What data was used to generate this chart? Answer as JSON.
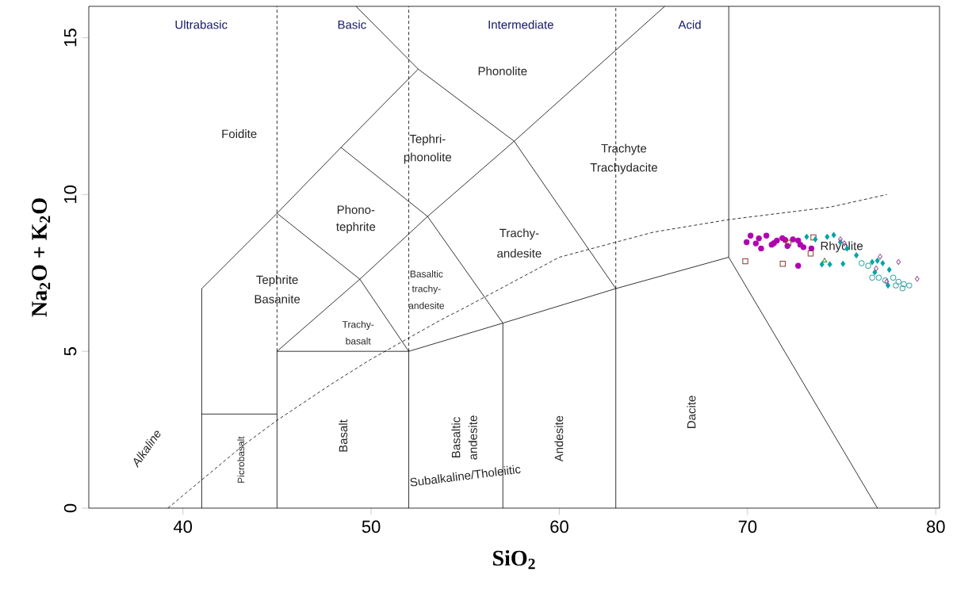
{
  "chart_data": {
    "type": "scatter",
    "xlabel": "SiO$_{2}$",
    "ylabel": "Na$_{2}$O + K$_{2}$O",
    "xlim": [
      35,
      80.2
    ],
    "ylim": [
      0,
      16
    ],
    "xticks": [
      40,
      50,
      60,
      70,
      80
    ],
    "yticks": [
      0,
      5,
      10,
      15
    ],
    "grid": false,
    "series": [
      {
        "marker": "circle",
        "color": "#b000b0",
        "x": [
          70.16,
          69.95,
          71.0,
          71.56,
          72.12,
          72.69,
          72.97,
          73.39,
          72.69,
          70.72,
          71.28,
          71.85,
          72.41,
          70.44,
          70.6,
          71.4,
          72.0,
          72.8
        ],
        "values": [
          8.69,
          8.48,
          8.69,
          8.53,
          8.36,
          8.53,
          8.32,
          8.28,
          7.73,
          8.28,
          8.4,
          8.61,
          8.57,
          8.44,
          8.6,
          8.45,
          8.55,
          8.4
        ]
      },
      {
        "marker": "square",
        "color": "#8b3a3a",
        "x": [
          69.88,
          71.87,
          73.5,
          72.17,
          73.35
        ],
        "values": [
          7.87,
          7.79,
          8.63,
          8.46,
          8.12
        ]
      },
      {
        "marker": "diamond",
        "color": "#00a5a5",
        "x": [
          73.14,
          73.6,
          74.23,
          74.58,
          74.93,
          75.29,
          75.78,
          75.07,
          74.37,
          73.95,
          76.62,
          76.9,
          77.18,
          77.53,
          77.46,
          76.76
        ],
        "values": [
          8.65,
          8.57,
          8.65,
          8.71,
          8.48,
          8.28,
          8.06,
          7.79,
          7.77,
          7.77,
          7.85,
          7.89,
          7.81,
          7.6,
          7.1,
          7.52
        ]
      },
      {
        "marker": "circle",
        "color": "#3aa5a5",
        "x": [
          76.06,
          76.41,
          76.62,
          76.97,
          77.32,
          77.74,
          78.02,
          78.3,
          78.59,
          77.88,
          78.23
        ],
        "values": [
          7.81,
          7.73,
          7.35,
          7.35,
          7.26,
          7.35,
          7.22,
          7.14,
          7.1,
          7.1,
          7.01
        ]
      },
      {
        "marker": "diamond",
        "color": "#9b4f9b",
        "x": [
          74.93,
          75.14,
          77.04,
          78.02,
          79.01,
          76.83,
          77.39
        ],
        "values": [
          8.57,
          8.44,
          8.02,
          7.85,
          7.31,
          7.64,
          7.22
        ]
      },
      {
        "marker": "triangle",
        "color": "#2e8b2e",
        "x": [
          74.09
        ],
        "values": [
          7.89
        ]
      },
      {
        "type": "line",
        "marker": "none",
        "line_style": "solid",
        "color": "#000000",
        "x": [
          41,
          41,
          45,
          48.4,
          52.5,
          49.2
        ],
        "values": [
          0,
          7,
          9.4,
          11.5,
          14,
          16
        ]
      },
      {
        "type": "line",
        "marker": "none",
        "line_style": "solid",
        "color": "#000000",
        "x": [
          52.5,
          57.6,
          63
        ],
        "values": [
          14,
          11.7,
          7
        ]
      },
      {
        "type": "line",
        "marker": "none",
        "line_style": "solid",
        "color": "#000000",
        "x": [
          45,
          49.4,
          53,
          57.6,
          65.6
        ],
        "values": [
          5,
          7.3,
          9.3,
          11.7,
          16
        ]
      },
      {
        "type": "line",
        "marker": "none",
        "line_style": "solid",
        "color": "#000000",
        "x": [
          45,
          49.4,
          52
        ],
        "values": [
          9.4,
          7.3,
          5
        ]
      },
      {
        "type": "line",
        "marker": "none",
        "line_style": "solid",
        "color": "#000000",
        "x": [
          48.4,
          53,
          57
        ],
        "values": [
          11.5,
          9.3,
          5.9
        ]
      },
      {
        "type": "line",
        "marker": "none",
        "line_style": "solid",
        "color": "#000000",
        "x": [
          45,
          52,
          57,
          63,
          69
        ],
        "values": [
          5,
          5,
          5.9,
          7,
          8
        ]
      },
      {
        "type": "line",
        "marker": "none",
        "line_style": "solid",
        "color": "#000000",
        "x": [
          69,
          69,
          76.9
        ],
        "values": [
          16,
          8,
          0
        ]
      },
      {
        "type": "line",
        "marker": "none",
        "line_style": "solid",
        "color": "#000000",
        "x": [
          41,
          45
        ],
        "values": [
          3,
          3
        ]
      },
      {
        "type": "line",
        "marker": "none",
        "line_style": "solid",
        "color": "#000000",
        "x": [
          45,
          45
        ],
        "values": [
          0,
          5
        ]
      },
      {
        "type": "line",
        "marker": "none",
        "line_style": "solid",
        "color": "#000000",
        "x": [
          52,
          52
        ],
        "values": [
          0,
          5
        ]
      },
      {
        "type": "line",
        "marker": "none",
        "line_style": "solid",
        "color": "#000000",
        "x": [
          57,
          57
        ],
        "values": [
          0,
          5.9
        ]
      },
      {
        "type": "line",
        "marker": "none",
        "line_style": "solid",
        "color": "#000000",
        "x": [
          63,
          63
        ],
        "values": [
          0,
          7
        ]
      },
      {
        "type": "line",
        "marker": "none",
        "line_style": "dashed",
        "color": "#000000",
        "x": [
          45,
          45
        ],
        "values": [
          5,
          16
        ]
      },
      {
        "type": "line",
        "marker": "none",
        "line_style": "dashed",
        "color": "#000000",
        "x": [
          52,
          52
        ],
        "values": [
          5,
          16
        ]
      },
      {
        "type": "line",
        "marker": "none",
        "line_style": "dashed",
        "color": "#000000",
        "x": [
          63,
          63
        ],
        "values": [
          7,
          16
        ]
      },
      {
        "type": "line",
        "marker": "none",
        "line_style": "dashed",
        "color": "#000000",
        "x": [
          39.2,
          40,
          43.2,
          45,
          48,
          50,
          53.7,
          55,
          60,
          65,
          69,
          74.4,
          77.4
        ],
        "values": [
          0,
          0.4,
          2,
          2.8,
          4,
          4.75,
          6,
          6.4,
          8,
          8.8,
          9.2,
          9.6,
          10
        ]
      }
    ],
    "annotations": [
      "Ultrabasic",
      "Basic",
      "Intermediate",
      "Acid",
      "Phonolite",
      "Foidite",
      "Tephri-",
      "phonolite",
      "Trachyte",
      "Trachydacite",
      "Phono-",
      "tephrite",
      "Trachy-",
      "andesite",
      "Tephrite",
      "Basanite",
      "Basaltic",
      "trachy-",
      "andesite",
      "Trachy-",
      "basalt",
      "Picrobasalt",
      "Basalt",
      "Basaltic",
      "andesite",
      "Andesite",
      "Dacite",
      "Alkaline",
      "Subalkaline/Tholeiitic",
      "Rhyolite"
    ]
  }
}
